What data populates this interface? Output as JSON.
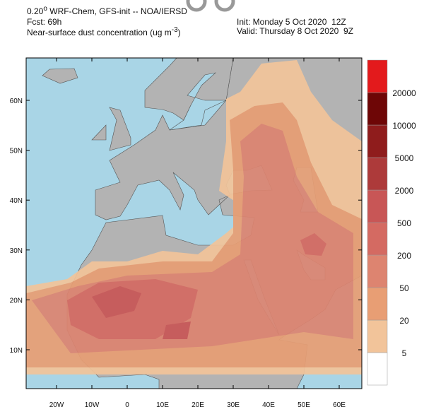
{
  "header": {
    "resolution": "0.20",
    "degree": "o",
    "model": " WRF-Chem, GFS-init -- NOA/IERSD",
    "forecast": "Fcst: 69h",
    "field": "Near-surface dust concentration (ug m",
    "unit_exponent": "-3",
    "field_close": ")",
    "init": "Init: Monday 5 Oct 2020  12Z",
    "valid": "Valid: Thursday 8 Oct 2020  9Z"
  },
  "map": {
    "lon_labels": [
      "20W",
      "10W",
      "0",
      "10E",
      "20E",
      "30E",
      "40E",
      "50E",
      "60E"
    ],
    "lat_labels": [
      "10N",
      "20N",
      "30N",
      "40N",
      "50N",
      "60N"
    ]
  },
  "legend": {
    "levels": [
      5,
      20,
      50,
      200,
      500,
      2000,
      5000,
      10000,
      20000
    ],
    "colors": [
      "#ffffff",
      "#f2c49a",
      "#e89e74",
      "#dd8470",
      "#d46a62",
      "#c85656",
      "#ad3a3a",
      "#8f1c1c",
      "#6e0606",
      "#e31a1c"
    ]
  }
}
